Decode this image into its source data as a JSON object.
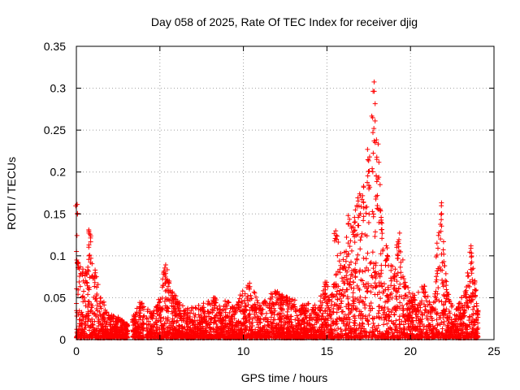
{
  "chart_data": {
    "type": "scatter",
    "title": "Day 058 of 2025, Rate Of TEC Index for receiver djig",
    "xlabel": "GPS time / hours",
    "ylabel": "ROTI / TECUs",
    "xlim": [
      0,
      25
    ],
    "ylim": [
      0,
      0.35
    ],
    "xticks": [
      "0",
      "5",
      "10",
      "15",
      "20",
      "25"
    ],
    "yticks": [
      "0",
      "0.05",
      "0.1",
      "0.15",
      "0.2",
      "0.25",
      "0.3",
      "0.35"
    ],
    "grid": true,
    "marker": "+",
    "color": "#ff0000",
    "envelope": [
      [
        0.0,
        0.17
      ],
      [
        0.1,
        0.1
      ],
      [
        0.3,
        0.09
      ],
      [
        0.6,
        0.08
      ],
      [
        0.8,
        0.133
      ],
      [
        1.1,
        0.085
      ],
      [
        1.5,
        0.05
      ],
      [
        2.0,
        0.03
      ],
      [
        2.5,
        0.025
      ],
      [
        3.0,
        0.018
      ],
      [
        3.5,
        0.03
      ],
      [
        3.8,
        0.045
      ],
      [
        4.5,
        0.03
      ],
      [
        5.0,
        0.05
      ],
      [
        5.3,
        0.092
      ],
      [
        5.8,
        0.055
      ],
      [
        6.5,
        0.035
      ],
      [
        7.5,
        0.04
      ],
      [
        8.3,
        0.05
      ],
      [
        9.5,
        0.04
      ],
      [
        10.3,
        0.07
      ],
      [
        11.0,
        0.04
      ],
      [
        11.9,
        0.06
      ],
      [
        12.5,
        0.05
      ],
      [
        13.5,
        0.042
      ],
      [
        14.5,
        0.04
      ],
      [
        14.9,
        0.07
      ],
      [
        15.3,
        0.055
      ],
      [
        15.5,
        0.13
      ],
      [
        16.0,
        0.1
      ],
      [
        16.3,
        0.15
      ],
      [
        16.6,
        0.15
      ],
      [
        16.9,
        0.17
      ],
      [
        17.2,
        0.19
      ],
      [
        17.5,
        0.23
      ],
      [
        17.8,
        0.31
      ],
      [
        18.0,
        0.25
      ],
      [
        18.3,
        0.15
      ],
      [
        18.6,
        0.11
      ],
      [
        19.0,
        0.08
      ],
      [
        19.3,
        0.13
      ],
      [
        19.7,
        0.07
      ],
      [
        20.2,
        0.05
      ],
      [
        20.8,
        0.065
      ],
      [
        21.3,
        0.04
      ],
      [
        21.8,
        0.168
      ],
      [
        22.2,
        0.055
      ],
      [
        22.8,
        0.04
      ],
      [
        23.3,
        0.06
      ],
      [
        23.6,
        0.115
      ],
      [
        23.9,
        0.06
      ],
      [
        24.0,
        0.035
      ]
    ],
    "gaps": [
      [
        3.1,
        3.35
      ],
      [
        4.05,
        4.2
      ]
    ]
  }
}
